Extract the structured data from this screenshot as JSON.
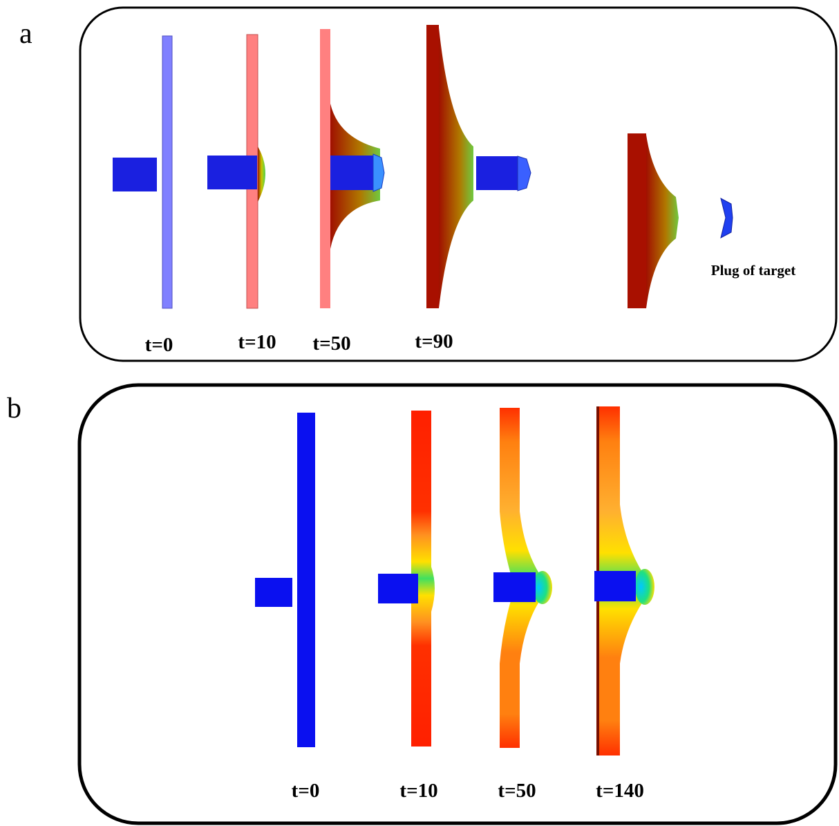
{
  "panel_a": {
    "letter": "a",
    "times": [
      "t=0",
      "t=10",
      "t=50",
      "t=90"
    ],
    "plug_label": "Plug of target"
  },
  "panel_b": {
    "letter": "b",
    "times": [
      "t=0",
      "t=10",
      "t=50",
      "t=140"
    ]
  }
}
